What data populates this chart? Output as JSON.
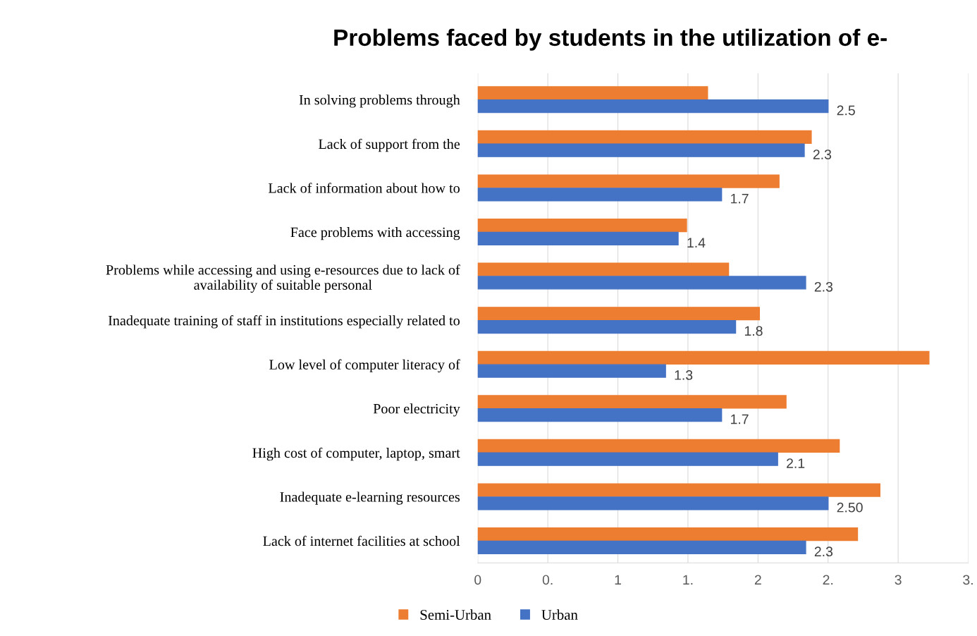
{
  "chart_data": {
    "type": "bar",
    "orientation": "horizontal",
    "title": "Problems faced by students in the utilization of e-",
    "categories": [
      "In solving problems through",
      "Lack of support from the",
      "Lack of information about how to",
      "Face problems with accessing",
      "Problems while accessing and using e-resources due to lack of\navailability of suitable personal",
      "Inadequate training of staff in institutions especially related to",
      "Low level of computer literacy of",
      "Poor electricity",
      "High cost of computer, laptop, smart",
      "Inadequate e-learning resources",
      "Lack of internet facilities at school"
    ],
    "series": [
      {
        "name": "Semi-Urban",
        "color": "#ed7d31",
        "values": [
          1.64,
          2.38,
          2.15,
          1.49,
          1.79,
          2.01,
          3.22,
          2.2,
          2.58,
          2.87,
          2.71
        ]
      },
      {
        "name": "Urban",
        "color": "#4472c4",
        "values": [
          2.5,
          2.33,
          1.74,
          1.43,
          2.34,
          1.84,
          1.34,
          1.74,
          2.14,
          2.5,
          2.34
        ],
        "value_labels": [
          "2.5",
          "2.3",
          "1.7",
          "1.4",
          "2.3",
          "1.8",
          "1.3",
          "1.7",
          "2.1",
          "2.50",
          "2.3"
        ]
      }
    ],
    "xlim": [
      0,
      3.5
    ],
    "xticks": [
      0,
      {
        "value": 0.5,
        "label": "0."
      },
      1,
      {
        "value": 1.5,
        "label": "1."
      },
      2,
      {
        "value": 2.5,
        "label": "2."
      },
      3,
      {
        "value": 3.5,
        "label": "3."
      }
    ],
    "grid": "x",
    "legend": "bottom"
  }
}
